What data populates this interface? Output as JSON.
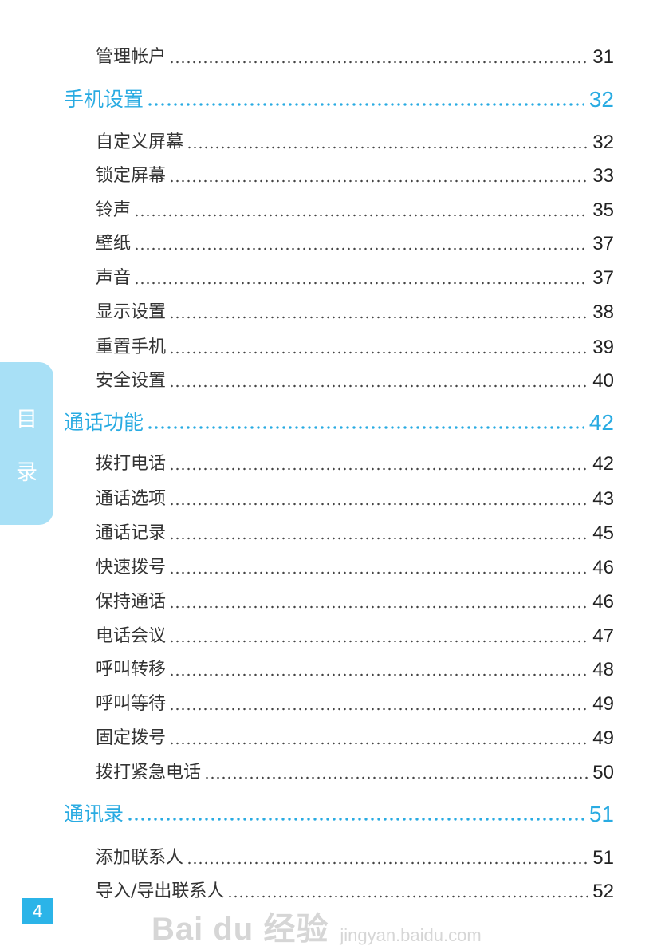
{
  "side_tab": {
    "chars": [
      "目",
      "录"
    ]
  },
  "page_number": "4",
  "watermark": {
    "brand": "Bai du 经验",
    "url": "jingyan.baidu.com"
  },
  "colors": {
    "heading": "#29abe2",
    "side_tab": "#a8e0f6",
    "page_number_bg": "#2bb4e8"
  },
  "toc": [
    {
      "level": 2,
      "title": "管理帐户",
      "page": "31"
    },
    {
      "level": 1,
      "title": "手机设置",
      "page": "32"
    },
    {
      "level": 2,
      "title": "自定义屏幕",
      "page": "32"
    },
    {
      "level": 2,
      "title": "锁定屏幕",
      "page": "33"
    },
    {
      "level": 2,
      "title": "铃声",
      "page": "35"
    },
    {
      "level": 2,
      "title": "壁纸",
      "page": "37"
    },
    {
      "level": 2,
      "title": "声音",
      "page": "37"
    },
    {
      "level": 2,
      "title": "显示设置",
      "page": "38"
    },
    {
      "level": 2,
      "title": "重置手机",
      "page": "39"
    },
    {
      "level": 2,
      "title": "安全设置",
      "page": "40"
    },
    {
      "level": 1,
      "title": "通话功能",
      "page": "42"
    },
    {
      "level": 2,
      "title": "拨打电话",
      "page": "42"
    },
    {
      "level": 2,
      "title": "通话选项",
      "page": "43"
    },
    {
      "level": 2,
      "title": "通话记录",
      "page": "45"
    },
    {
      "level": 2,
      "title": "快速拨号",
      "page": "46"
    },
    {
      "level": 2,
      "title": "保持通话",
      "page": "46"
    },
    {
      "level": 2,
      "title": "电话会议",
      "page": "47"
    },
    {
      "level": 2,
      "title": "呼叫转移",
      "page": "48"
    },
    {
      "level": 2,
      "title": "呼叫等待",
      "page": "49"
    },
    {
      "level": 2,
      "title": "固定拨号",
      "page": "49"
    },
    {
      "level": 2,
      "title": "拨打紧急电话",
      "page": "50"
    },
    {
      "level": 1,
      "title": "通讯录",
      "page": "51"
    },
    {
      "level": 2,
      "title": "添加联系人",
      "page": "51"
    },
    {
      "level": 2,
      "title": "导入/导出联系人",
      "page": "52"
    }
  ]
}
